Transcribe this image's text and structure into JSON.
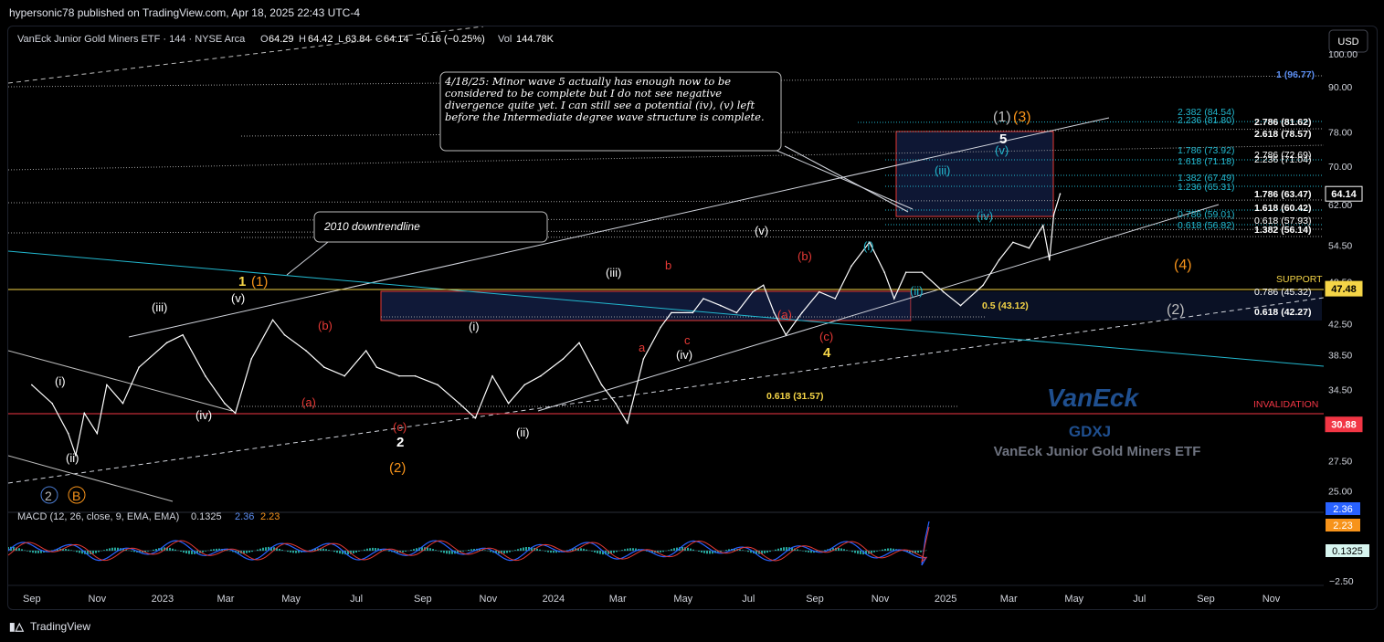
{
  "publisher_line": "hypersonic78 published on TradingView.com, Apr 18, 2025 22:43 UTC-4",
  "footer": {
    "brand": "TradingView"
  },
  "header": {
    "symbol_line": "VanEck Junior Gold Miners ETF · 144 · NYSE Arca",
    "o_label": "O",
    "o_value": "64.29",
    "h_label": "H",
    "h_value": "64.42",
    "l_label": "L",
    "l_value": "63.84",
    "c_label": "C",
    "c_value": "64.14",
    "change": "−0.16 (−0.25%)",
    "vol_label": "Vol",
    "vol_value": "144.78K",
    "currency_button": "USD"
  },
  "macd": {
    "label": "MACD (12, 26, close, 9, EMA, EMA)",
    "hist_value": "0.1325",
    "macd_value": "2.36",
    "signal_value": "2.23",
    "axis_ticks": [
      "−2.50"
    ]
  },
  "colors": {
    "up": "#ffffff",
    "accent": "#2962ff",
    "red_line": "#f23645",
    "support": "#f5d547",
    "orange": "#f7931a",
    "teal": "#22b8cf",
    "wave_red": "#e53935"
  },
  "chart_data": {
    "type": "line",
    "symbol": "GDXJ",
    "series": [
      {
        "x": [
          "2022-09-01",
          "2022-09-20",
          "2022-10-05",
          "2022-10-12",
          "2022-10-20",
          "2022-11-01",
          "2022-11-10",
          "2022-11-25",
          "2022-12-10",
          "2023-01-05",
          "2023-01-20",
          "2023-02-10",
          "2023-02-28",
          "2023-03-10",
          "2023-03-25",
          "2023-04-14",
          "2023-04-25",
          "2023-05-15",
          "2023-06-01",
          "2023-06-20",
          "2023-07-10",
          "2023-07-20",
          "2023-08-10",
          "2023-08-25",
          "2023-09-15",
          "2023-10-05",
          "2023-10-20",
          "2023-11-05",
          "2023-11-20",
          "2023-12-05",
          "2023-12-20",
          "2024-01-10",
          "2024-01-25",
          "2024-02-15",
          "2024-02-28",
          "2024-03-10",
          "2024-03-25",
          "2024-04-10",
          "2024-04-20",
          "2024-05-10",
          "2024-05-20",
          "2024-06-05",
          "2024-06-20",
          "2024-07-05",
          "2024-07-15",
          "2024-07-25",
          "2024-08-05",
          "2024-08-20",
          "2024-09-05",
          "2024-09-20",
          "2024-10-05",
          "2024-10-22",
          "2024-11-05",
          "2024-11-14",
          "2024-11-25",
          "2024-12-10",
          "2024-12-30",
          "2025-01-15",
          "2025-02-05",
          "2025-02-20",
          "2025-03-05",
          "2025-03-20",
          "2025-04-02",
          "2025-04-08",
          "2025-04-12",
          "2025-04-18"
        ],
        "y": [
          35,
          33,
          30,
          28,
          32,
          30,
          35,
          33,
          37,
          40,
          41,
          36,
          33,
          32,
          38,
          43,
          41,
          39,
          37,
          36,
          39,
          37,
          36,
          36,
          35,
          33,
          31.5,
          36,
          33,
          35,
          36,
          38,
          40,
          35,
          33,
          31,
          38,
          42,
          44,
          44,
          46,
          45,
          44,
          47,
          48,
          44,
          41,
          44,
          47,
          46,
          51,
          55,
          50,
          46,
          50,
          50,
          47,
          45,
          48,
          52,
          55,
          54,
          58,
          52,
          60,
          64.14
        ]
      }
    ],
    "yticks": [
      "100.00",
      "90.00",
      "78.00",
      "70.00",
      "62.00",
      "54.50",
      "48.50",
      "42.50",
      "38.50",
      "34.50",
      "30.88",
      "27.50",
      "25.00"
    ],
    "xticks": [
      "Sep",
      "Nov",
      "2023",
      "Mar",
      "May",
      "Jul",
      "Sep",
      "Nov",
      "2024",
      "Mar",
      "May",
      "Jul",
      "Sep",
      "Nov",
      "2025",
      "Mar",
      "May",
      "Jul",
      "Sep",
      "Nov"
    ],
    "ylim": [
      23.5,
      109
    ],
    "price_badges": [
      {
        "label": "64.14",
        "value": 64.14
      },
      {
        "label": "47.48",
        "value": 47.48
      },
      {
        "label": "30.88",
        "value": 30.88
      }
    ],
    "levels_right": [
      {
        "label": "1 (96.77)",
        "value": 96.77
      },
      {
        "label": "2.382 (84.54)",
        "value": 84.54
      },
      {
        "label": "2.236 (81.80)",
        "value": 81.8
      },
      {
        "label": "2.786 (81.62)",
        "value": 81.62
      },
      {
        "label": "2.618 (78.57)",
        "value": 78.57
      },
      {
        "label": "1.786 (73.92)",
        "value": 73.92
      },
      {
        "label": "2.786 (72.69)",
        "value": 72.69
      },
      {
        "label": "1.618 (71.18)",
        "value": 71.18
      },
      {
        "label": "2.236 (71.04)",
        "value": 71.04
      },
      {
        "label": "1.382 (67.49)",
        "value": 67.49
      },
      {
        "label": "1.236 (65.31)",
        "value": 65.31
      },
      {
        "label": "1.786 (63.47)",
        "value": 63.47
      },
      {
        "label": "1.618 (60.42)",
        "value": 60.42
      },
      {
        "label": "0.786 (59.01)",
        "value": 59.01
      },
      {
        "label": "0.618 (57.93)",
        "value": 57.93
      },
      {
        "label": "0.618 (56.82)",
        "value": 56.82
      },
      {
        "label": "1.382 (56.14)",
        "value": 56.14
      },
      {
        "label": "SUPPORT",
        "value": 48.9
      },
      {
        "label": "0.786 (45.32)",
        "value": 45.32
      },
      {
        "label": "0.618 (42.27)",
        "value": 42.27
      },
      {
        "label": "0.5 (43.12)",
        "value": 43.12
      },
      {
        "label": "0.618 (31.57)",
        "value": 31.57
      },
      {
        "label": "INVALIDATION",
        "value": 32
      }
    ],
    "annotations": [
      {
        "text": "4/18/25: Minor wave 5 actually has enough now to be considered to be complete but I do not see negative divergence quite yet.  I can still see a potential (iv), (v) left before the Intermediate degree wave structure is complete."
      },
      {
        "text": "2010 downtrendline"
      }
    ],
    "watermark": {
      "brand": "VanEck",
      "ticker": "GDXJ",
      "name": "VanEck Junior Gold Miners ETF"
    },
    "wave_labels": [
      "(i)",
      "(ii)",
      "(iii)",
      "(iv)",
      "(v)",
      "1",
      "(1)",
      "(a)",
      "(b)",
      "(c)",
      "2",
      "(2)",
      "(i)",
      "(ii)",
      "(iii)",
      "a",
      "b",
      "c",
      "(iv)",
      "(v)",
      "(a)",
      "(b)",
      "(c)",
      "4",
      "(i)",
      "(ii)",
      "(iii)",
      "(iv)",
      "(v)",
      "5",
      "(1)",
      "(3)",
      "(4)",
      "(2)",
      "2",
      "B"
    ]
  }
}
